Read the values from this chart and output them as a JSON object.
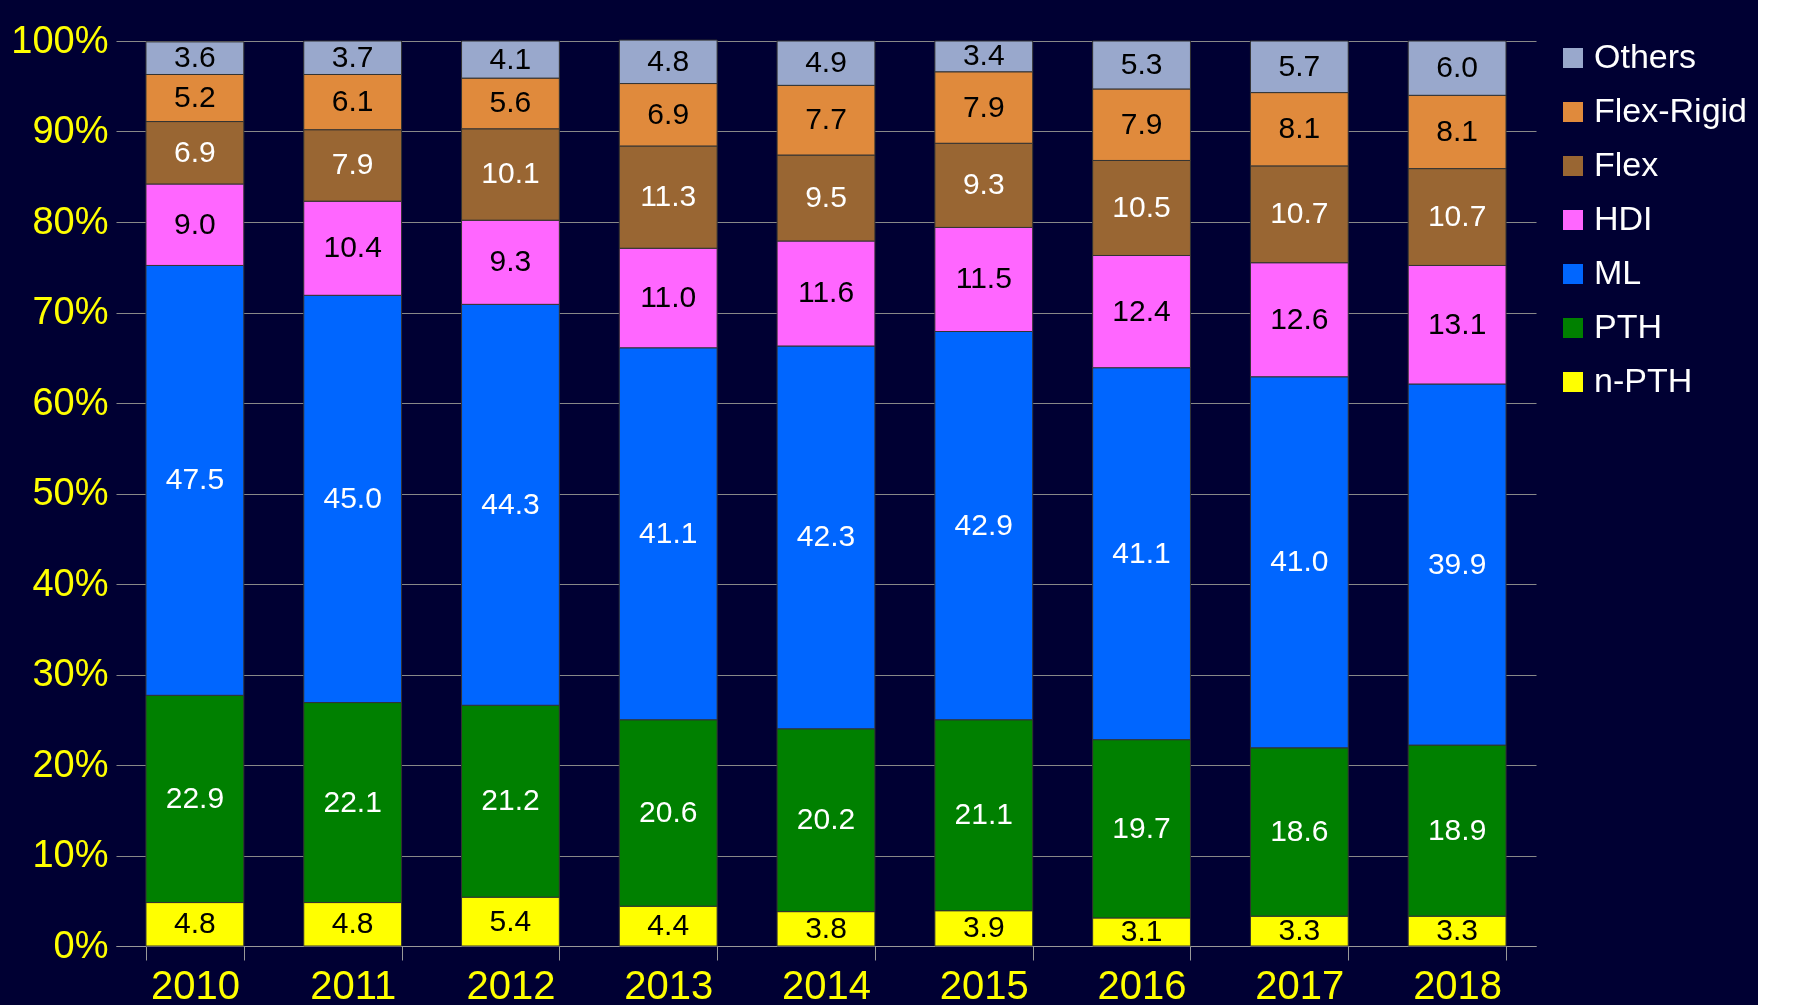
{
  "chart_data": {
    "type": "bar",
    "stacked": true,
    "grid": "y",
    "legend": "right",
    "categories": [
      "2010",
      "2011",
      "2012",
      "2013",
      "2014",
      "2015",
      "2016",
      "2017",
      "2018"
    ],
    "ylim": [
      0,
      100
    ],
    "yticks": [
      {
        "value": 0,
        "label": "0%"
      },
      {
        "value": 10,
        "label": "10%"
      },
      {
        "value": 20,
        "label": "20%"
      },
      {
        "value": 30,
        "label": "30%"
      },
      {
        "value": 40,
        "label": "40%"
      },
      {
        "value": 50,
        "label": "50%"
      },
      {
        "value": 60,
        "label": "60%"
      },
      {
        "value": 70,
        "label": "70%"
      },
      {
        "value": 80,
        "label": "80%"
      },
      {
        "value": 90,
        "label": "90%"
      },
      {
        "value": 100,
        "label": "100%"
      }
    ],
    "series": [
      {
        "name": "n-PTH",
        "color": "#ffff00",
        "values": [
          4.8,
          4.8,
          5.4,
          4.4,
          3.8,
          3.9,
          3.1,
          3.3,
          3.3
        ],
        "value_labels": [
          "4.8",
          "4.8",
          "5.4",
          "4.4",
          "3.8",
          "3.9",
          "3.1",
          "3.3",
          "3.3"
        ]
      },
      {
        "name": "PTH",
        "color": "#008000",
        "values": [
          22.9,
          22.1,
          21.2,
          20.6,
          20.2,
          21.1,
          19.7,
          18.6,
          18.9
        ],
        "value_labels": [
          "22.9",
          "22.1",
          "21.2",
          "20.6",
          "20.2",
          "21.1",
          "19.7",
          "18.6",
          "18.9"
        ]
      },
      {
        "name": "ML",
        "color": "#0066ff",
        "values": [
          47.5,
          45.0,
          44.3,
          41.1,
          42.3,
          42.9,
          41.1,
          41.0,
          39.9
        ],
        "value_labels": [
          "47.5",
          "45.0",
          "44.3",
          "41.1",
          "42.3",
          "42.9",
          "41.1",
          "41.0",
          "39.9"
        ]
      },
      {
        "name": "HDI",
        "color": "#ff66ff",
        "values": [
          9.0,
          10.4,
          9.3,
          11.0,
          11.6,
          11.5,
          12.4,
          12.6,
          13.1
        ],
        "value_labels": [
          "9.0",
          "10.4",
          "9.3",
          "11.0",
          "11.6",
          "11.5",
          "12.4",
          "12.6",
          "13.1"
        ]
      },
      {
        "name": "Flex",
        "color": "#996633",
        "values": [
          6.9,
          7.9,
          10.1,
          11.3,
          9.5,
          9.3,
          10.5,
          10.7,
          10.7
        ],
        "value_labels": [
          "6.9",
          "7.9",
          "10.1",
          "11.3",
          "9.5",
          "9.3",
          "10.5",
          "10.7",
          "10.7"
        ]
      },
      {
        "name": "Flex-Rigid",
        "color": "#e08a3c",
        "values": [
          5.2,
          6.1,
          5.6,
          6.9,
          7.7,
          7.9,
          7.9,
          8.1,
          8.1
        ],
        "value_labels": [
          "5.2",
          "6.1",
          "5.6",
          "6.9",
          "7.7",
          "7.9",
          "7.9",
          "8.1",
          "8.1"
        ]
      },
      {
        "name": "Others",
        "color": "#99a8cc",
        "values": [
          3.6,
          3.7,
          4.1,
          4.8,
          4.9,
          3.4,
          5.3,
          5.7,
          6.0
        ],
        "value_labels": [
          "3.6",
          "3.7",
          "4.1",
          "4.8",
          "4.9",
          "3.4",
          "5.3",
          "5.7",
          "6.0"
        ]
      }
    ]
  }
}
